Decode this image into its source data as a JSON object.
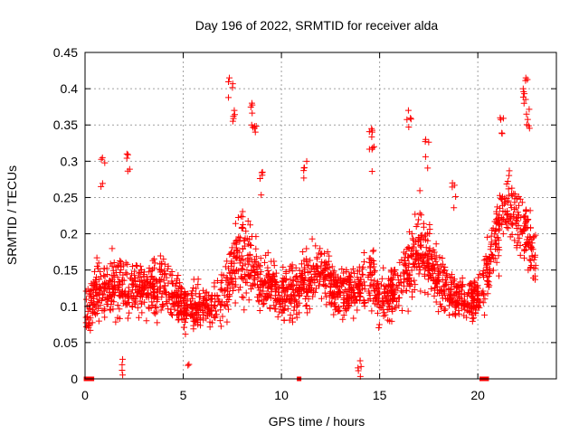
{
  "chart_data": {
    "type": "scatter",
    "title": "Day 196 of 2022, SRMTID for receiver alda",
    "xlabel": "GPS time / hours",
    "ylabel": "SRMTID / TECUs",
    "xlim": [
      0,
      24
    ],
    "ylim": [
      0,
      0.45
    ],
    "x_ticks": [
      0,
      5,
      10,
      15,
      20
    ],
    "y_ticks": [
      0,
      0.05,
      0.1,
      0.15,
      0.2,
      0.25,
      0.3,
      0.35,
      0.4,
      0.45
    ],
    "x_tick_labels": [
      "0",
      "5",
      "10",
      "15",
      "20"
    ],
    "y_tick_labels": [
      "0",
      "0.05",
      "0.1",
      "0.15",
      "0.2",
      "0.25",
      "0.3",
      "0.35",
      "0.4",
      "0.45"
    ],
    "grid": true,
    "marker": "+",
    "color": "#ff0000",
    "envelope": {
      "hours": [
        0,
        0.5,
        1,
        2,
        3,
        4,
        5,
        6,
        7,
        7.5,
        8,
        8.5,
        9,
        10,
        11,
        12,
        13,
        14,
        14.5,
        15,
        16,
        16.5,
        17,
        17.5,
        18,
        19,
        20,
        20.5,
        21,
        21.5,
        22,
        22.5,
        23
      ],
      "median": [
        0.09,
        0.12,
        0.12,
        0.13,
        0.12,
        0.13,
        0.1,
        0.1,
        0.11,
        0.15,
        0.17,
        0.16,
        0.13,
        0.12,
        0.13,
        0.15,
        0.12,
        0.12,
        0.14,
        0.11,
        0.13,
        0.15,
        0.18,
        0.17,
        0.13,
        0.11,
        0.11,
        0.15,
        0.2,
        0.24,
        0.22,
        0.2,
        0.15
      ],
      "spread": [
        0.04,
        0.05,
        0.05,
        0.05,
        0.04,
        0.05,
        0.04,
        0.04,
        0.05,
        0.07,
        0.08,
        0.06,
        0.04,
        0.05,
        0.05,
        0.05,
        0.04,
        0.05,
        0.06,
        0.05,
        0.05,
        0.06,
        0.07,
        0.06,
        0.05,
        0.04,
        0.04,
        0.06,
        0.07,
        0.07,
        0.06,
        0.06,
        0.05
      ],
      "approx_point_count": 2200
    },
    "spikes": [
      {
        "x": 0.9,
        "y": 0.305
      },
      {
        "x": 2.2,
        "y": 0.31
      },
      {
        "x": 7.4,
        "y": 0.415
      },
      {
        "x": 7.5,
        "y": 0.37
      },
      {
        "x": 8.5,
        "y": 0.38
      },
      {
        "x": 8.6,
        "y": 0.35
      },
      {
        "x": 11.2,
        "y": 0.3
      },
      {
        "x": 14.5,
        "y": 0.345
      },
      {
        "x": 14.6,
        "y": 0.32
      },
      {
        "x": 16.5,
        "y": 0.37
      },
      {
        "x": 17.4,
        "y": 0.33
      },
      {
        "x": 21.2,
        "y": 0.36
      },
      {
        "x": 22.3,
        "y": 0.4
      },
      {
        "x": 22.5,
        "y": 0.415
      },
      {
        "x": 22.6,
        "y": 0.365
      },
      {
        "x": 9.0,
        "y": 0.285
      },
      {
        "x": 18.8,
        "y": 0.27
      },
      {
        "x": 14.0,
        "y": 0.025
      },
      {
        "x": 5.2,
        "y": 0.02
      },
      {
        "x": 2.0,
        "y": 0.027
      }
    ],
    "zero_markers_hours": [
      0.05,
      0.15,
      0.35,
      10.9,
      20.2,
      20.35,
      20.45
    ]
  }
}
